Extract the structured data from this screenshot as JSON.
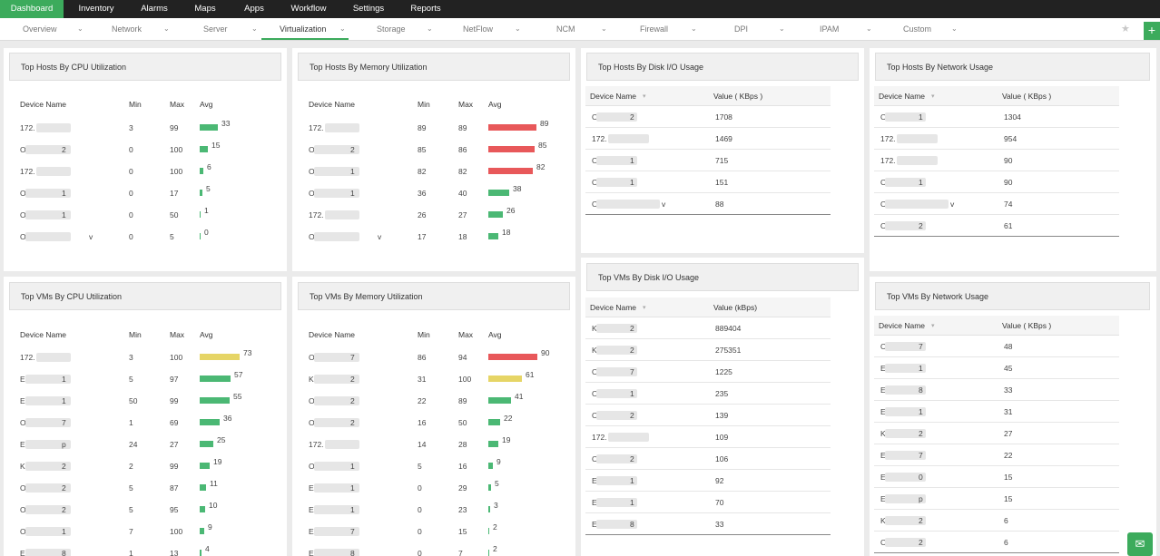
{
  "topnav": [
    "Dashboard",
    "Inventory",
    "Alarms",
    "Maps",
    "Apps",
    "Workflow",
    "Settings",
    "Reports"
  ],
  "subnav": [
    "Overview",
    "Network",
    "Server",
    "Virtualization",
    "Storage",
    "NetFlow",
    "NCM",
    "Firewall",
    "DPI",
    "IPAM",
    "Custom"
  ],
  "widgets": {
    "host_cpu": {
      "title": "Top Hosts By CPU Utilization",
      "headers": [
        "Device Name",
        "Min",
        "Max",
        "Avg"
      ],
      "rows": [
        {
          "name": "172.",
          "min": "3",
          "max": "99",
          "avg": 33,
          "color": "green"
        },
        {
          "name": "O",
          "suffix": "2",
          "min": "0",
          "max": "100",
          "avg": 15,
          "color": "green"
        },
        {
          "name": "172.",
          "min": "0",
          "max": "100",
          "avg": 6,
          "color": "green"
        },
        {
          "name": "O",
          "suffix": "1",
          "min": "0",
          "max": "17",
          "avg": 5,
          "color": "green"
        },
        {
          "name": "O",
          "suffix": "1",
          "min": "0",
          "max": "50",
          "avg": 1,
          "color": "green"
        },
        {
          "name": "O",
          "suffix": "v",
          "min": "0",
          "max": "5",
          "avg": 0,
          "color": "green"
        }
      ]
    },
    "host_mem": {
      "title": "Top Hosts By Memory Utilization",
      "headers": [
        "Device Name",
        "Min",
        "Max",
        "Avg"
      ],
      "rows": [
        {
          "name": "172.",
          "min": "89",
          "max": "89",
          "avg": 89,
          "color": "red"
        },
        {
          "name": "O",
          "suffix": "2",
          "min": "85",
          "max": "86",
          "avg": 85,
          "color": "red"
        },
        {
          "name": "O",
          "suffix": "1",
          "min": "82",
          "max": "82",
          "avg": 82,
          "color": "red"
        },
        {
          "name": "O",
          "suffix": "1",
          "min": "36",
          "max": "40",
          "avg": 38,
          "color": "green"
        },
        {
          "name": "172.",
          "min": "26",
          "max": "27",
          "avg": 26,
          "color": "green"
        },
        {
          "name": "O",
          "suffix": "v",
          "min": "17",
          "max": "18",
          "avg": 18,
          "color": "green"
        }
      ]
    },
    "host_disk": {
      "title": "Top Hosts By Disk I/O Usage",
      "headers": [
        "Device Name",
        "Value ( KBps )"
      ],
      "rows": [
        {
          "name": "O",
          "suffix": "2",
          "value": "1708"
        },
        {
          "name": "172.",
          "value": "1469"
        },
        {
          "name": "O",
          "suffix": "1",
          "value": "715"
        },
        {
          "name": "O",
          "suffix": "1",
          "value": "151"
        },
        {
          "name": "O",
          "suffix": "v",
          "value": "88"
        }
      ]
    },
    "host_net": {
      "title": "Top Hosts By Network Usage",
      "headers": [
        "Device Name",
        "Value ( KBps )"
      ],
      "rows": [
        {
          "name": "O",
          "suffix": "1",
          "value": "1304"
        },
        {
          "name": "172.",
          "value": "954"
        },
        {
          "name": "172.",
          "value": "90"
        },
        {
          "name": "O",
          "suffix": "1",
          "value": "90"
        },
        {
          "name": "O",
          "suffix": "v",
          "value": "74"
        },
        {
          "name": "O",
          "suffix": "2",
          "value": "61"
        }
      ]
    },
    "vm_cpu": {
      "title": "Top VMs By CPU Utilization",
      "headers": [
        "Device Name",
        "Min",
        "Max",
        "Avg"
      ],
      "rows": [
        {
          "name": "172.",
          "min": "3",
          "max": "100",
          "avg": 73,
          "color": "yellow"
        },
        {
          "name": "E",
          "suffix": "1",
          "min": "5",
          "max": "97",
          "avg": 57,
          "color": "green"
        },
        {
          "name": "E",
          "suffix": "1",
          "min": "50",
          "max": "99",
          "avg": 55,
          "color": "green"
        },
        {
          "name": "O",
          "suffix": "7",
          "min": "1",
          "max": "69",
          "avg": 36,
          "color": "green"
        },
        {
          "name": "E",
          "suffix": "p",
          "min": "24",
          "max": "27",
          "avg": 25,
          "color": "green"
        },
        {
          "name": "K",
          "suffix": "2",
          "min": "2",
          "max": "99",
          "avg": 19,
          "color": "green"
        },
        {
          "name": "O",
          "suffix": "2",
          "min": "5",
          "max": "87",
          "avg": 11,
          "color": "green"
        },
        {
          "name": "O",
          "suffix": "2",
          "min": "5",
          "max": "95",
          "avg": 10,
          "color": "green"
        },
        {
          "name": "O",
          "suffix": "1",
          "min": "7",
          "max": "100",
          "avg": 9,
          "color": "green"
        },
        {
          "name": "E",
          "suffix": "8",
          "min": "1",
          "max": "13",
          "avg": 4,
          "color": "green"
        }
      ]
    },
    "vm_mem": {
      "title": "Top VMs By Memory Utilization",
      "headers": [
        "Device Name",
        "Min",
        "Max",
        "Avg"
      ],
      "rows": [
        {
          "name": "O",
          "suffix": "7",
          "min": "86",
          "max": "94",
          "avg": 90,
          "color": "red"
        },
        {
          "name": "K",
          "suffix": "2",
          "min": "31",
          "max": "100",
          "avg": 61,
          "color": "yellow"
        },
        {
          "name": "O",
          "suffix": "2",
          "min": "22",
          "max": "89",
          "avg": 41,
          "color": "green"
        },
        {
          "name": "O",
          "suffix": "2",
          "min": "16",
          "max": "50",
          "avg": 22,
          "color": "green"
        },
        {
          "name": "172.",
          "min": "14",
          "max": "28",
          "avg": 19,
          "color": "green"
        },
        {
          "name": "O",
          "suffix": "1",
          "min": "5",
          "max": "16",
          "avg": 9,
          "color": "green"
        },
        {
          "name": "E",
          "suffix": "1",
          "min": "0",
          "max": "29",
          "avg": 5,
          "color": "green"
        },
        {
          "name": "E",
          "suffix": "1",
          "min": "0",
          "max": "23",
          "avg": 3,
          "color": "green"
        },
        {
          "name": "E",
          "suffix": "7",
          "min": "0",
          "max": "15",
          "avg": 2,
          "color": "green"
        },
        {
          "name": "E",
          "suffix": "8",
          "min": "0",
          "max": "7",
          "avg": 2,
          "color": "green"
        }
      ]
    },
    "vm_disk": {
      "title": "Top VMs By Disk I/O Usage",
      "headers": [
        "Device Name",
        "Value (kBps)"
      ],
      "rows": [
        {
          "name": "K",
          "suffix": "2",
          "value": "889404"
        },
        {
          "name": "K",
          "suffix": "2",
          "value": "275351"
        },
        {
          "name": "O",
          "suffix": "7",
          "value": "1225"
        },
        {
          "name": "O",
          "suffix": "1",
          "value": "235"
        },
        {
          "name": "O",
          "suffix": "2",
          "value": "139"
        },
        {
          "name": "172.",
          "value": "109"
        },
        {
          "name": "O",
          "suffix": "2",
          "value": "106"
        },
        {
          "name": "E",
          "suffix": "1",
          "value": "92"
        },
        {
          "name": "E",
          "suffix": "1",
          "value": "70"
        },
        {
          "name": "E",
          "suffix": "8",
          "value": "33"
        }
      ]
    },
    "vm_net": {
      "title": "Top VMs By Network Usage",
      "headers": [
        "Device Name",
        "Value ( KBps )"
      ],
      "rows": [
        {
          "name": "O",
          "suffix": "7",
          "value": "48"
        },
        {
          "name": "E",
          "suffix": "1",
          "value": "45"
        },
        {
          "name": "E",
          "suffix": "8",
          "value": "33"
        },
        {
          "name": "E",
          "suffix": "1",
          "value": "31"
        },
        {
          "name": "K",
          "suffix": "2",
          "value": "27"
        },
        {
          "name": "E.",
          "suffix": "7",
          "value": "22"
        },
        {
          "name": "E",
          "suffix": "0",
          "value": "15"
        },
        {
          "name": "E",
          "suffix": "p",
          "value": "15"
        },
        {
          "name": "K",
          "suffix": "2",
          "value": "6"
        },
        {
          "name": "O",
          "suffix": "2",
          "value": "6"
        }
      ]
    }
  }
}
